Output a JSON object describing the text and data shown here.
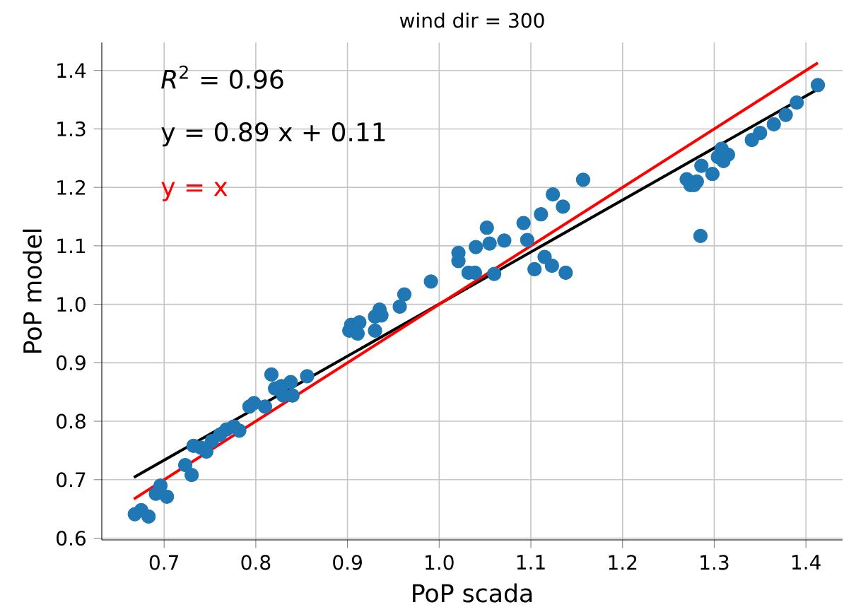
{
  "chart_data": {
    "type": "scatter",
    "title": "wind dir = 300",
    "xlabel": "PoP scada",
    "ylabel": "PoP model",
    "annotations": [
      "*R*$^{2}$ = 0.96"
    ],
    "xlim": [
      0.632,
      1.44
    ],
    "ylim": [
      0.597,
      1.448
    ],
    "xticks": [
      0.7,
      0.8,
      0.9,
      {
        "value": 1.0,
        "label": "1.0"
      },
      1.1,
      1.2,
      1.3,
      1.4
    ],
    "yticks": [
      0.6,
      0.7,
      0.8,
      0.9,
      {
        "value": 1.0,
        "label": "1.0"
      },
      1.1,
      1.2,
      1.3,
      1.4
    ],
    "grid": true,
    "series": [
      {
        "color": "#1f77b4",
        "marker": "circle",
        "x": [
          0.668,
          0.675,
          0.683,
          0.691,
          0.696,
          0.703,
          0.723,
          0.73,
          0.732,
          0.74,
          0.746,
          0.752,
          0.761,
          0.768,
          0.776,
          0.782,
          0.793,
          0.798,
          0.81,
          0.817,
          0.821,
          0.828,
          0.83,
          0.838,
          0.84,
          0.856,
          0.902,
          0.904,
          0.913,
          0.911,
          0.93,
          0.93,
          0.935,
          0.937,
          0.957,
          0.962,
          0.991,
          1.021,
          1.021,
          1.032,
          1.039,
          1.04,
          1.052,
          1.055,
          1.06,
          1.071,
          1.092,
          1.096,
          1.104,
          1.111,
          1.115,
          1.123,
          1.124,
          1.135,
          1.138,
          1.157,
          1.27,
          1.274,
          1.281,
          1.278,
          1.285,
          1.286,
          1.298,
          1.308,
          1.304,
          1.315,
          1.31,
          1.341,
          1.35,
          1.365,
          1.378,
          1.39,
          1.413
        ],
        "values": [
          0.641,
          0.648,
          0.637,
          0.676,
          0.69,
          0.671,
          0.725,
          0.708,
          0.758,
          0.755,
          0.748,
          0.766,
          0.777,
          0.786,
          0.791,
          0.784,
          0.825,
          0.831,
          0.825,
          0.88,
          0.856,
          0.86,
          0.844,
          0.867,
          0.844,
          0.877,
          0.955,
          0.965,
          0.969,
          0.95,
          0.955,
          0.979,
          0.991,
          0.981,
          0.996,
          1.017,
          1.039,
          1.074,
          1.088,
          1.054,
          1.054,
          1.098,
          1.131,
          1.104,
          1.052,
          1.109,
          1.139,
          1.11,
          1.06,
          1.154,
          1.081,
          1.066,
          1.188,
          1.167,
          1.054,
          1.213,
          1.214,
          1.204,
          1.21,
          1.204,
          1.117,
          1.237,
          1.223,
          1.266,
          1.252,
          1.256,
          1.245,
          1.281,
          1.293,
          1.308,
          1.324,
          1.345,
          1.375
        ]
      },
      {
        "type": "line",
        "name": "y = 0.89 x + 0.11",
        "color": "#000000",
        "marker": "none",
        "line_style": "solid",
        "x": [
          0.667,
          1.413
        ],
        "values": [
          0.704,
          1.368
        ]
      },
      {
        "type": "line",
        "name": "y = x",
        "color": "#ff0000",
        "marker": "none",
        "line_style": "solid",
        "x": [
          0.667,
          1.413
        ],
        "values": [
          0.667,
          1.413
        ]
      }
    ]
  }
}
